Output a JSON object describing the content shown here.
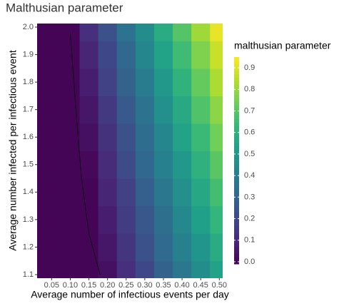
{
  "chart_data": {
    "type": "heatmap",
    "title": "Malthusian parameter",
    "x_label": "Average number of infectious events per day",
    "y_label": "Average number infected per infectious event",
    "legend_title": "malthusian parameter",
    "x": [
      0.01,
      0.05,
      0.1,
      0.15,
      0.2,
      0.25,
      0.3,
      0.35,
      0.4,
      0.45,
      0.5
    ],
    "y": [
      1.1,
      1.2,
      1.3,
      1.4,
      1.5,
      1.6,
      1.7,
      1.8,
      1.9,
      2.0
    ],
    "z": [
      [
        0,
        0,
        0,
        0,
        0.03,
        0.12,
        0.2,
        0.29,
        0.37,
        0.46,
        0.54
      ],
      [
        0,
        0,
        0,
        0,
        0.05,
        0.14,
        0.23,
        0.32,
        0.41,
        0.49,
        0.58
      ],
      [
        0,
        0,
        0,
        0,
        0.07,
        0.16,
        0.25,
        0.34,
        0.44,
        0.53,
        0.62
      ],
      [
        0,
        0,
        0,
        0,
        0.09,
        0.18,
        0.28,
        0.37,
        0.47,
        0.56,
        0.66
      ],
      [
        0,
        0,
        0,
        0.01,
        0.11,
        0.21,
        0.31,
        0.41,
        0.5,
        0.6,
        0.7
      ],
      [
        0,
        0,
        0,
        0.03,
        0.13,
        0.23,
        0.33,
        0.43,
        0.54,
        0.64,
        0.74
      ],
      [
        0,
        0,
        0,
        0.05,
        0.15,
        0.26,
        0.36,
        0.47,
        0.57,
        0.68,
        0.78
      ],
      [
        0,
        0,
        0,
        0.07,
        0.18,
        0.29,
        0.39,
        0.5,
        0.61,
        0.72,
        0.83
      ],
      [
        0,
        0,
        0,
        0.09,
        0.2,
        0.31,
        0.43,
        0.54,
        0.65,
        0.76,
        0.87
      ],
      [
        0,
        0,
        0,
        0.12,
        0.23,
        0.35,
        0.46,
        0.58,
        0.69,
        0.81,
        0.92
      ]
    ],
    "contour": {
      "x": [
        0.1,
        0.115,
        0.13,
        0.15,
        0.18
      ],
      "y": [
        1.98,
        1.7,
        1.45,
        1.25,
        1.1
      ],
      "color": "#000000"
    },
    "xlim": [
      0.011,
      0.509
    ],
    "ylim": [
      1.087,
      2.013
    ],
    "xticks": [
      {
        "value": 0.05,
        "label": "0.05"
      },
      {
        "value": 0.1,
        "label": "0.10"
      },
      {
        "value": 0.15,
        "label": "0.15"
      },
      {
        "value": 0.2,
        "label": "0.20"
      },
      {
        "value": 0.25,
        "label": "0.25"
      },
      {
        "value": 0.3,
        "label": "0.30"
      },
      {
        "value": 0.35,
        "label": "0.35"
      },
      {
        "value": 0.4,
        "label": "0.40"
      },
      {
        "value": 0.45,
        "label": "0.45"
      },
      {
        "value": 0.5,
        "label": "0.50"
      }
    ],
    "yticks": [
      1.1,
      1.2,
      1.3,
      1.4,
      1.5,
      1.6,
      1.7,
      1.8,
      1.9,
      {
        "value": 2.0,
        "label": "2.0"
      }
    ],
    "colorbar_lim": [
      -0.01,
      0.95
    ],
    "colorbar_ticks": [
      {
        "value": 0,
        "label": "0.0"
      },
      0.1,
      0.2,
      0.3,
      0.4,
      0.5,
      0.6,
      0.7,
      0.8,
      0.9
    ],
    "colormap": [
      "#440154",
      "#482878",
      "#3e4989",
      "#31688e",
      "#26828e",
      "#1f9e89",
      "#35b779",
      "#6ece58",
      "#b5de2b",
      "#fde725"
    ]
  }
}
